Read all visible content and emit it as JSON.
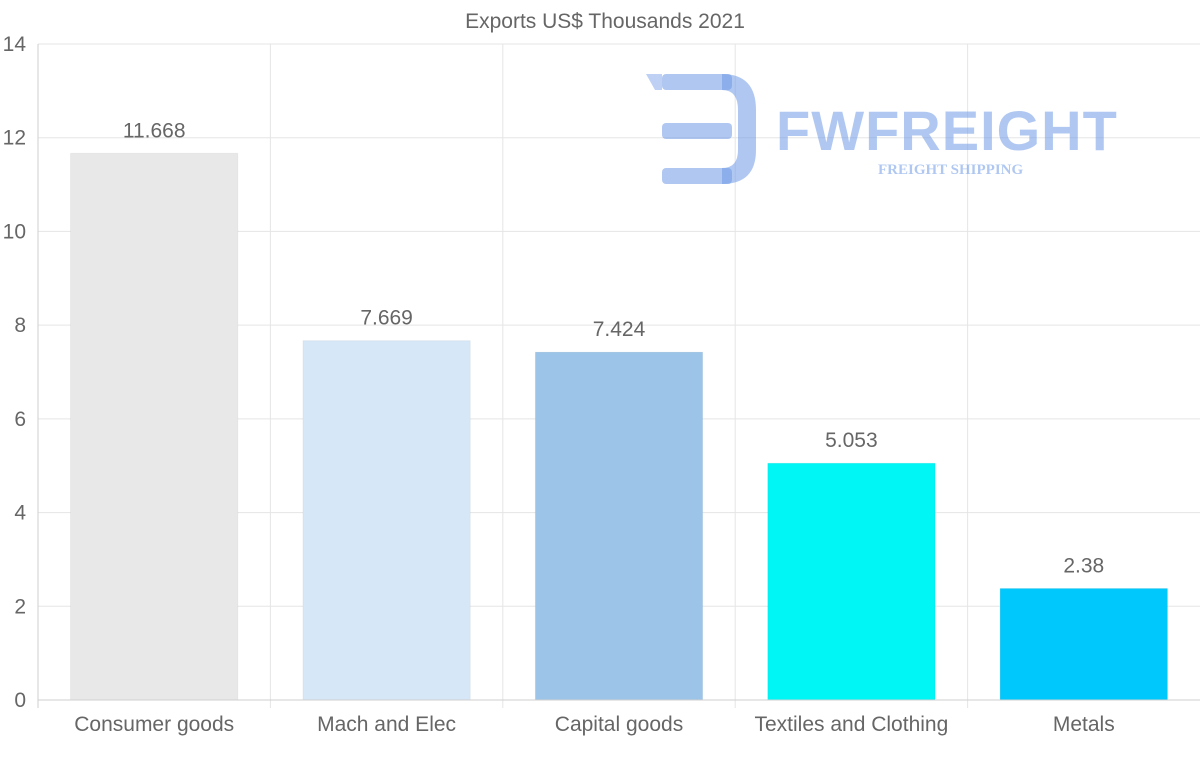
{
  "chart_data": {
    "type": "bar",
    "title": "Exports US$ Thousands 2021",
    "categories": [
      "Consumer goods",
      "Mach and Elec",
      "Capital goods",
      "Textiles and Clothing",
      "Metals"
    ],
    "values": [
      11.668,
      7.669,
      7.424,
      5.053,
      2.38
    ],
    "value_labels": [
      "11.668",
      "7.669",
      "7.424",
      "5.053",
      "2.38"
    ],
    "colors": [
      "#e8e8e8",
      "#d6e7f8",
      "#9cc4e8",
      "#00f5f5",
      "#00c8fc"
    ],
    "ylim": [
      0,
      14
    ],
    "yticks": [
      0,
      2,
      4,
      6,
      8,
      10,
      12,
      14
    ],
    "xlabel": "",
    "ylabel": "",
    "grid": true,
    "legend": "none"
  },
  "watermark": {
    "name": "FWFREIGHT",
    "tagline": "FREIGHT SHIPPING",
    "color": "#6f9ae6"
  }
}
